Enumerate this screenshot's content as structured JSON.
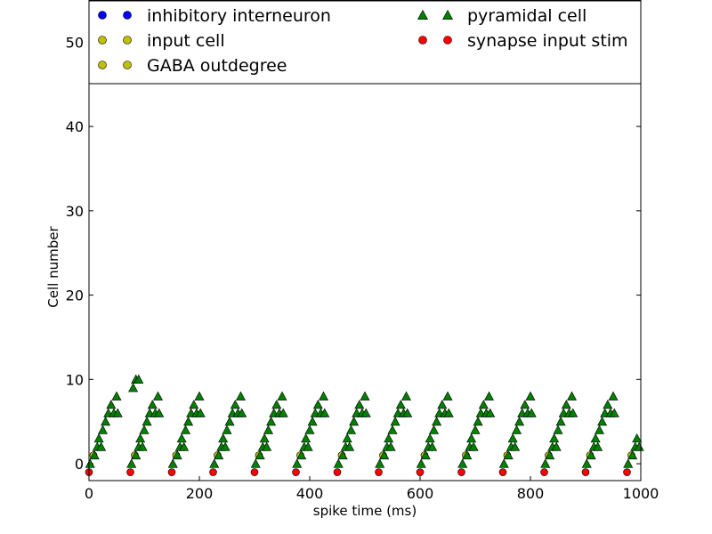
{
  "chart_data": {
    "type": "scatter",
    "xlabel": "spike time (ms)",
    "ylabel": "Cell number",
    "xlim": [
      0,
      1000
    ],
    "ylim": [
      -2,
      55
    ],
    "x_ticks": [
      0,
      200,
      400,
      600,
      800,
      1000
    ],
    "y_ticks": [
      0,
      10,
      20,
      30,
      40,
      50
    ],
    "x_tick_labels": [
      "0",
      "200",
      "400",
      "600",
      "800",
      "1000"
    ],
    "y_tick_labels": [
      "0",
      "10",
      "20",
      "30",
      "40",
      "50"
    ],
    "grid": false,
    "legend_position": "top",
    "legend": [
      {
        "name": "inhibitory interneuron",
        "color": "#0000ff",
        "marker": "circle",
        "column": 0,
        "row": 0
      },
      {
        "name": "input cell",
        "color": "#bfbf00",
        "marker": "circle",
        "column": 0,
        "row": 1
      },
      {
        "name": "GABA outdegree",
        "color": "#bfbf00",
        "marker": "circle",
        "column": 0,
        "row": 2
      },
      {
        "name": "pyramidal cell",
        "color": "#008000",
        "marker": "triangle",
        "column": 1,
        "row": 0
      },
      {
        "name": "synapse input stim",
        "color": "#ff0000",
        "marker": "circle",
        "column": 1,
        "row": 1
      }
    ],
    "series": [
      {
        "name": "synapse input stim",
        "color": "#ff0000",
        "marker": "circle",
        "points": [
          [
            0,
            -1
          ],
          [
            75,
            -1
          ],
          [
            150,
            -1
          ],
          [
            225,
            -1
          ],
          [
            300,
            -1
          ],
          [
            375,
            -1
          ],
          [
            450,
            -1
          ],
          [
            525,
            -1
          ],
          [
            600,
            -1
          ],
          [
            675,
            -1
          ],
          [
            750,
            -1
          ],
          [
            825,
            -1
          ],
          [
            900,
            -1
          ],
          [
            975,
            -1
          ]
        ]
      },
      {
        "name": "input cell",
        "color": "#bfbf00",
        "marker": "circle",
        "points": [
          [
            8,
            1
          ],
          [
            83,
            1
          ],
          [
            158,
            1
          ],
          [
            233,
            1
          ],
          [
            308,
            1
          ],
          [
            383,
            1
          ],
          [
            458,
            1
          ],
          [
            533,
            1
          ],
          [
            608,
            1
          ],
          [
            683,
            1
          ],
          [
            758,
            1
          ],
          [
            833,
            1
          ],
          [
            908,
            1
          ],
          [
            983,
            1
          ]
        ]
      },
      {
        "name": "pyramidal cell",
        "color": "#008000",
        "marker": "triangle",
        "points": [
          [
            2,
            0
          ],
          [
            10,
            1
          ],
          [
            15,
            2
          ],
          [
            18,
            3
          ],
          [
            22,
            2
          ],
          [
            25,
            4
          ],
          [
            30,
            5
          ],
          [
            35,
            6
          ],
          [
            40,
            7
          ],
          [
            45,
            6
          ],
          [
            50,
            8
          ],
          [
            52,
            6
          ],
          [
            80,
            9
          ],
          [
            85,
            10
          ],
          [
            90,
            10
          ],
          [
            77,
            0
          ],
          [
            85,
            1
          ],
          [
            90,
            2
          ],
          [
            93,
            3
          ],
          [
            97,
            2
          ],
          [
            100,
            4
          ],
          [
            105,
            5
          ],
          [
            110,
            6
          ],
          [
            115,
            7
          ],
          [
            120,
            6
          ],
          [
            125,
            8
          ],
          [
            127,
            6
          ],
          [
            152,
            0
          ],
          [
            160,
            1
          ],
          [
            165,
            2
          ],
          [
            168,
            3
          ],
          [
            172,
            2
          ],
          [
            175,
            4
          ],
          [
            180,
            5
          ],
          [
            185,
            6
          ],
          [
            190,
            7
          ],
          [
            195,
            6
          ],
          [
            200,
            8
          ],
          [
            202,
            6
          ],
          [
            227,
            0
          ],
          [
            235,
            1
          ],
          [
            240,
            2
          ],
          [
            243,
            3
          ],
          [
            247,
            2
          ],
          [
            250,
            4
          ],
          [
            255,
            5
          ],
          [
            260,
            6
          ],
          [
            265,
            7
          ],
          [
            270,
            6
          ],
          [
            275,
            8
          ],
          [
            277,
            6
          ],
          [
            302,
            0
          ],
          [
            310,
            1
          ],
          [
            315,
            2
          ],
          [
            318,
            3
          ],
          [
            322,
            2
          ],
          [
            325,
            4
          ],
          [
            330,
            5
          ],
          [
            335,
            6
          ],
          [
            340,
            7
          ],
          [
            345,
            6
          ],
          [
            350,
            8
          ],
          [
            352,
            6
          ],
          [
            377,
            0
          ],
          [
            385,
            1
          ],
          [
            390,
            2
          ],
          [
            393,
            3
          ],
          [
            397,
            2
          ],
          [
            400,
            4
          ],
          [
            405,
            5
          ],
          [
            410,
            6
          ],
          [
            415,
            7
          ],
          [
            420,
            6
          ],
          [
            425,
            8
          ],
          [
            427,
            6
          ],
          [
            452,
            0
          ],
          [
            460,
            1
          ],
          [
            465,
            2
          ],
          [
            468,
            3
          ],
          [
            472,
            2
          ],
          [
            475,
            4
          ],
          [
            480,
            5
          ],
          [
            485,
            6
          ],
          [
            490,
            7
          ],
          [
            495,
            6
          ],
          [
            500,
            8
          ],
          [
            502,
            6
          ],
          [
            527,
            0
          ],
          [
            535,
            1
          ],
          [
            540,
            2
          ],
          [
            543,
            3
          ],
          [
            547,
            2
          ],
          [
            550,
            4
          ],
          [
            555,
            5
          ],
          [
            560,
            6
          ],
          [
            565,
            7
          ],
          [
            570,
            6
          ],
          [
            575,
            8
          ],
          [
            577,
            6
          ],
          [
            602,
            0
          ],
          [
            610,
            1
          ],
          [
            615,
            2
          ],
          [
            618,
            3
          ],
          [
            622,
            2
          ],
          [
            625,
            4
          ],
          [
            630,
            5
          ],
          [
            635,
            6
          ],
          [
            640,
            7
          ],
          [
            645,
            6
          ],
          [
            650,
            8
          ],
          [
            652,
            6
          ],
          [
            677,
            0
          ],
          [
            685,
            1
          ],
          [
            690,
            2
          ],
          [
            693,
            3
          ],
          [
            697,
            2
          ],
          [
            700,
            4
          ],
          [
            705,
            5
          ],
          [
            710,
            6
          ],
          [
            715,
            7
          ],
          [
            720,
            6
          ],
          [
            725,
            8
          ],
          [
            727,
            6
          ],
          [
            752,
            0
          ],
          [
            760,
            1
          ],
          [
            765,
            2
          ],
          [
            768,
            3
          ],
          [
            772,
            2
          ],
          [
            775,
            4
          ],
          [
            780,
            5
          ],
          [
            785,
            6
          ],
          [
            790,
            7
          ],
          [
            795,
            6
          ],
          [
            800,
            8
          ],
          [
            802,
            6
          ],
          [
            827,
            0
          ],
          [
            835,
            1
          ],
          [
            840,
            2
          ],
          [
            843,
            3
          ],
          [
            847,
            2
          ],
          [
            850,
            4
          ],
          [
            855,
            5
          ],
          [
            860,
            6
          ],
          [
            865,
            7
          ],
          [
            870,
            6
          ],
          [
            875,
            8
          ],
          [
            877,
            6
          ],
          [
            902,
            0
          ],
          [
            910,
            1
          ],
          [
            915,
            2
          ],
          [
            918,
            3
          ],
          [
            922,
            2
          ],
          [
            925,
            4
          ],
          [
            930,
            5
          ],
          [
            935,
            6
          ],
          [
            940,
            7
          ],
          [
            945,
            6
          ],
          [
            950,
            8
          ],
          [
            952,
            6
          ],
          [
            977,
            0
          ],
          [
            985,
            1
          ],
          [
            990,
            2
          ],
          [
            993,
            3
          ],
          [
            997,
            2
          ]
        ]
      }
    ]
  }
}
